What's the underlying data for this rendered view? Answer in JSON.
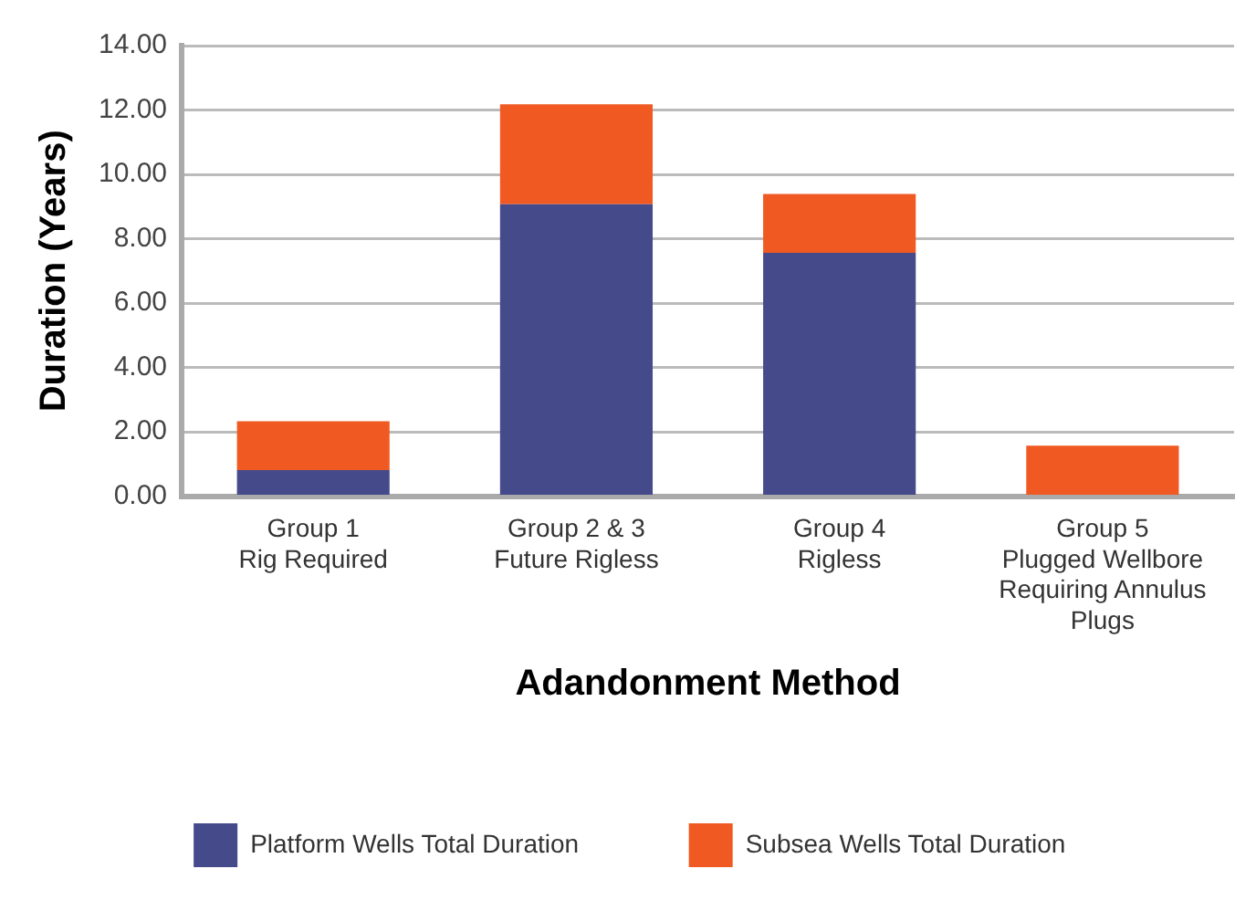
{
  "chart_data": {
    "type": "bar",
    "stacked": true,
    "xlabel": "Adandonment Method",
    "ylabel": "Duration (Years)",
    "categories": [
      "Group 1\nRig Required",
      "Group 2 & 3\nFuture Rigless",
      "Group 4\nRigless",
      "Group 5\nPlugged Wellbore\nRequiring Annulus\nPlugs"
    ],
    "series": [
      {
        "name": "Platform Wells Total Duration",
        "color": "#454a8a",
        "values": [
          0.81,
          9.07,
          7.56,
          0
        ]
      },
      {
        "name": "Subsea Wells Total Duration",
        "color": "#f05a22",
        "values": [
          1.52,
          3.11,
          1.83,
          1.57
        ]
      }
    ],
    "ylim": [
      0,
      14
    ],
    "yticks": [
      {
        "value": 0,
        "label": "0.00"
      },
      {
        "value": 2,
        "label": "2.00"
      },
      {
        "value": 4,
        "label": "4.00"
      },
      {
        "value": 6,
        "label": "6.00"
      },
      {
        "value": 8,
        "label": "8.00"
      },
      {
        "value": 10,
        "label": "10.00"
      },
      {
        "value": 12,
        "label": "12.00"
      },
      {
        "value": 14,
        "label": "14.00"
      }
    ],
    "grid": "y",
    "legend": "bottom"
  }
}
